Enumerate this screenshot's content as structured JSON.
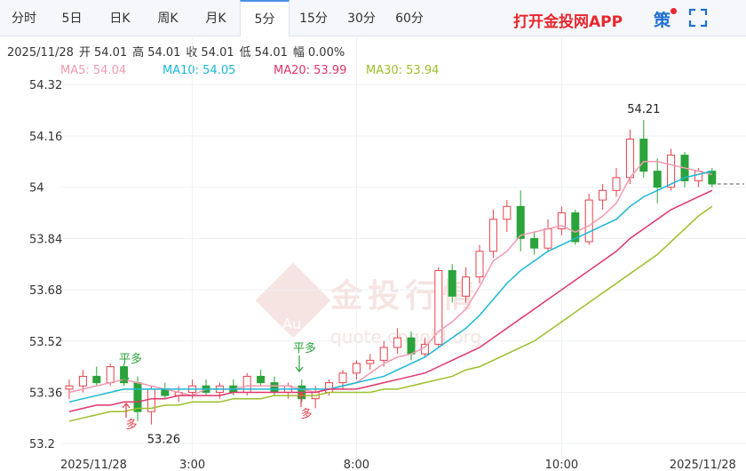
{
  "tabs": [
    "分时",
    "5日",
    "日K",
    "周K",
    "月K",
    "5分",
    "15分",
    "30分",
    "60分"
  ],
  "promo": "打开金投网APP",
  "tool": "策",
  "info": {
    "date": "2025/11/28",
    "items": [
      {
        "label": "开",
        "value": 54.01
      },
      {
        "label": "高",
        "value": 54.01
      },
      {
        "label": "收",
        "value": 54.01
      },
      {
        "label": "低",
        "value": 54.01
      },
      {
        "label": "幅",
        "value": "0.00%"
      }
    ]
  },
  "watermark": {
    "logo": "Au",
    "title": "金投行情",
    "url": "quote.cngold.org"
  },
  "chart_data": {
    "type": "candlestick",
    "categories": [
      "2025/11/28",
      null,
      null,
      null,
      null,
      null,
      null,
      null,
      null,
      "3:00",
      null,
      null,
      null,
      null,
      null,
      null,
      null,
      null,
      null,
      null,
      null,
      "8:00",
      null,
      null,
      null,
      null,
      null,
      null,
      null,
      null,
      null,
      null,
      null,
      null,
      null,
      null,
      "10:00",
      null,
      null,
      null,
      null,
      null,
      null,
      null,
      null,
      null,
      null,
      "2025/11/28"
    ],
    "open": [
      53.37,
      53.38,
      53.41,
      53.39,
      53.44,
      53.39,
      53.3,
      53.37,
      53.35,
      53.36,
      53.38,
      53.36,
      53.38,
      53.36,
      53.41,
      53.39,
      53.36,
      53.38,
      53.34,
      53.36,
      53.39,
      53.42,
      53.45,
      53.46,
      53.5,
      53.53,
      53.48,
      53.51,
      53.74,
      53.66,
      53.72,
      53.8,
      53.9,
      53.94,
      53.84,
      53.81,
      53.87,
      53.92,
      53.83,
      53.96,
      53.99,
      54.03,
      54.15,
      54.05,
      54.0,
      54.1,
      54.02,
      54.05
    ],
    "high": [
      53.4,
      53.43,
      53.44,
      53.45,
      53.45,
      53.41,
      53.38,
      53.39,
      53.38,
      53.4,
      53.4,
      53.39,
      53.4,
      53.42,
      53.43,
      53.41,
      53.39,
      53.4,
      53.38,
      53.4,
      53.43,
      53.46,
      53.48,
      53.52,
      53.56,
      53.55,
      53.53,
      53.75,
      53.76,
      53.75,
      53.82,
      53.93,
      53.96,
      53.99,
      53.86,
      53.9,
      53.94,
      53.93,
      53.98,
      54.01,
      54.06,
      54.18,
      54.21,
      54.09,
      54.12,
      54.11,
      54.06,
      54.06
    ],
    "low": [
      53.34,
      53.36,
      53.38,
      53.38,
      53.38,
      53.27,
      53.26,
      53.34,
      53.33,
      53.34,
      53.35,
      53.34,
      53.35,
      53.35,
      53.38,
      53.35,
      53.34,
      53.33,
      53.31,
      53.35,
      53.37,
      53.4,
      53.43,
      53.44,
      53.48,
      53.46,
      53.47,
      53.5,
      53.64,
      53.64,
      53.7,
      53.78,
      53.86,
      53.8,
      53.79,
      53.8,
      53.85,
      53.82,
      53.82,
      53.93,
      53.97,
      54.01,
      54.03,
      53.95,
      53.99,
      54.0,
      54.0,
      54.0
    ],
    "close": [
      53.38,
      53.41,
      53.39,
      53.44,
      53.39,
      53.3,
      53.37,
      53.35,
      53.36,
      53.38,
      53.36,
      53.38,
      53.36,
      53.41,
      53.39,
      53.36,
      53.38,
      53.34,
      53.36,
      53.39,
      53.42,
      53.45,
      53.46,
      53.5,
      53.53,
      53.48,
      53.51,
      53.74,
      53.66,
      53.72,
      53.8,
      53.9,
      53.94,
      53.84,
      53.81,
      53.87,
      53.92,
      53.83,
      53.96,
      53.99,
      54.03,
      54.15,
      54.05,
      54.0,
      54.1,
      54.02,
      54.05,
      54.01
    ],
    "up_color": "#e8414a",
    "down_color": "#2aa33a",
    "series": [
      {
        "name": "MA5: 54.04",
        "color": "#f29bb0",
        "values": [
          53.36,
          53.37,
          53.38,
          53.39,
          53.4,
          53.39,
          53.38,
          53.37,
          53.36,
          53.35,
          53.37,
          53.37,
          53.37,
          53.38,
          53.38,
          53.38,
          53.38,
          53.37,
          53.36,
          53.37,
          53.38,
          53.39,
          53.42,
          53.45,
          53.47,
          53.48,
          53.5,
          53.55,
          53.58,
          53.62,
          53.69,
          53.77,
          53.8,
          53.85,
          53.86,
          53.87,
          53.88,
          53.86,
          53.88,
          53.91,
          53.95,
          54.03,
          54.08,
          54.08,
          54.07,
          54.06,
          54.05,
          54.04
        ]
      },
      {
        "name": "MA10: 54.05",
        "color": "#1ab8d4",
        "values": [
          53.33,
          53.34,
          53.35,
          53.36,
          53.37,
          53.37,
          53.37,
          53.37,
          53.37,
          53.37,
          53.37,
          53.37,
          53.37,
          53.37,
          53.37,
          53.37,
          53.37,
          53.37,
          53.37,
          53.37,
          53.38,
          53.39,
          53.4,
          53.41,
          53.43,
          53.45,
          53.47,
          53.5,
          53.53,
          53.56,
          53.6,
          53.65,
          53.7,
          53.74,
          53.77,
          53.8,
          53.82,
          53.84,
          53.86,
          53.88,
          53.9,
          53.94,
          53.97,
          53.99,
          54.01,
          54.03,
          54.04,
          54.05
        ]
      },
      {
        "name": "MA20: 53.99",
        "color": "#e0356b",
        "values": [
          53.3,
          53.31,
          53.32,
          53.32,
          53.33,
          53.33,
          53.34,
          53.34,
          53.35,
          53.35,
          53.35,
          53.35,
          53.36,
          53.36,
          53.36,
          53.36,
          53.36,
          53.36,
          53.36,
          53.37,
          53.37,
          53.37,
          53.38,
          53.39,
          53.4,
          53.41,
          53.42,
          53.44,
          53.46,
          53.48,
          53.5,
          53.53,
          53.56,
          53.59,
          53.62,
          53.65,
          53.68,
          53.71,
          53.74,
          53.77,
          53.8,
          53.84,
          53.87,
          53.9,
          53.93,
          53.95,
          53.97,
          53.99
        ]
      },
      {
        "name": "MA30: 53.94",
        "color": "#9cbf2b",
        "values": [
          53.27,
          53.28,
          53.29,
          53.3,
          53.3,
          53.31,
          53.31,
          53.32,
          53.32,
          53.33,
          53.33,
          53.33,
          53.34,
          53.34,
          53.34,
          53.35,
          53.35,
          53.35,
          53.35,
          53.36,
          53.36,
          53.36,
          53.36,
          53.37,
          53.37,
          53.38,
          53.39,
          53.4,
          53.41,
          53.43,
          53.44,
          53.46,
          53.48,
          53.5,
          53.52,
          53.55,
          53.58,
          53.61,
          53.64,
          53.67,
          53.7,
          53.73,
          53.76,
          53.79,
          53.83,
          53.87,
          53.91,
          53.94
        ]
      }
    ],
    "ylim": [
      53.17,
      54.39
    ],
    "yticks": [
      53.2,
      53.36,
      53.52,
      53.68,
      53.84,
      54,
      54.16,
      54.32
    ],
    "grid": true,
    "high_label": 54.21,
    "low_label": 53.26,
    "signals": [
      "平多",
      "多",
      "平多",
      "多"
    ]
  }
}
